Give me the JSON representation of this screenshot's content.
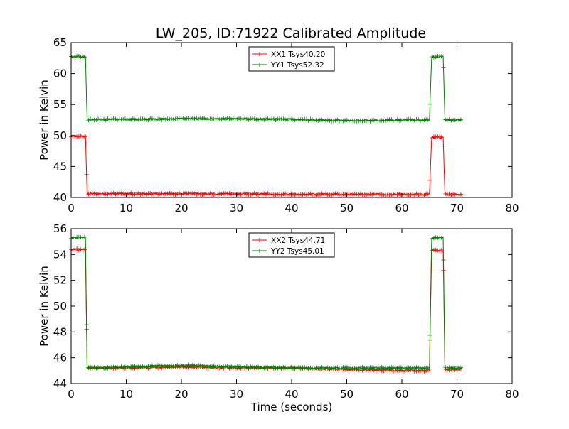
{
  "figure": {
    "title": "LW_205, ID:71922 Calibrated Amplitude"
  },
  "chart_data": [
    {
      "type": "line",
      "title": "LW_205, ID:71922 Calibrated Amplitude",
      "xlabel": "",
      "ylabel": "Power in Kelvin",
      "xlim": [
        0,
        80
      ],
      "ylim": [
        40,
        65
      ],
      "xticks": [
        0,
        10,
        20,
        30,
        40,
        50,
        60,
        70,
        80
      ],
      "yticks": [
        40,
        45,
        50,
        55,
        60,
        65
      ],
      "grid": false,
      "legend_position": "top-center",
      "series": [
        {
          "name": "XX1 Tsys40.20",
          "color": "#ff0000",
          "x": [
            0,
            2.6,
            2.9,
            10,
            20,
            30,
            40,
            50,
            60,
            65.0,
            65.4,
            67.5,
            67.8,
            71
          ],
          "y": [
            49.9,
            49.9,
            40.6,
            40.6,
            40.6,
            40.6,
            40.5,
            40.5,
            40.5,
            40.5,
            49.7,
            49.7,
            40.5,
            40.5
          ]
        },
        {
          "name": "YY1 Tsys52.32",
          "color": "#008000",
          "x": [
            0,
            2.6,
            2.9,
            10,
            20,
            30,
            40,
            50,
            60,
            65.0,
            65.4,
            67.5,
            67.8,
            71
          ],
          "y": [
            62.7,
            62.7,
            52.6,
            52.6,
            52.7,
            52.7,
            52.6,
            52.4,
            52.5,
            52.5,
            62.7,
            62.7,
            52.5,
            52.5
          ]
        }
      ]
    },
    {
      "type": "line",
      "title": "",
      "xlabel": "Time (seconds)",
      "ylabel": "Power in Kelvin",
      "xlim": [
        0,
        80
      ],
      "ylim": [
        44,
        56
      ],
      "xticks": [
        0,
        10,
        20,
        30,
        40,
        50,
        60,
        70,
        80
      ],
      "yticks": [
        44,
        46,
        48,
        50,
        52,
        54,
        56
      ],
      "grid": false,
      "legend_position": "top-center",
      "series": [
        {
          "name": "XX2 Tsys44.71",
          "color": "#ff0000",
          "x": [
            0,
            2.6,
            2.9,
            10,
            20,
            30,
            40,
            50,
            60,
            65.0,
            65.4,
            67.5,
            67.8,
            71
          ],
          "y": [
            54.4,
            54.4,
            45.2,
            45.2,
            45.3,
            45.2,
            45.2,
            45.1,
            45.0,
            45.0,
            54.3,
            54.3,
            45.1,
            45.1
          ]
        },
        {
          "name": "YY2 Tsys45.01",
          "color": "#008000",
          "x": [
            0,
            2.6,
            2.9,
            10,
            20,
            30,
            40,
            50,
            60,
            65.0,
            65.4,
            67.5,
            67.8,
            71
          ],
          "y": [
            55.3,
            55.3,
            45.2,
            45.3,
            45.4,
            45.3,
            45.2,
            45.2,
            45.2,
            45.2,
            55.3,
            55.3,
            45.2,
            45.2
          ]
        }
      ]
    }
  ]
}
